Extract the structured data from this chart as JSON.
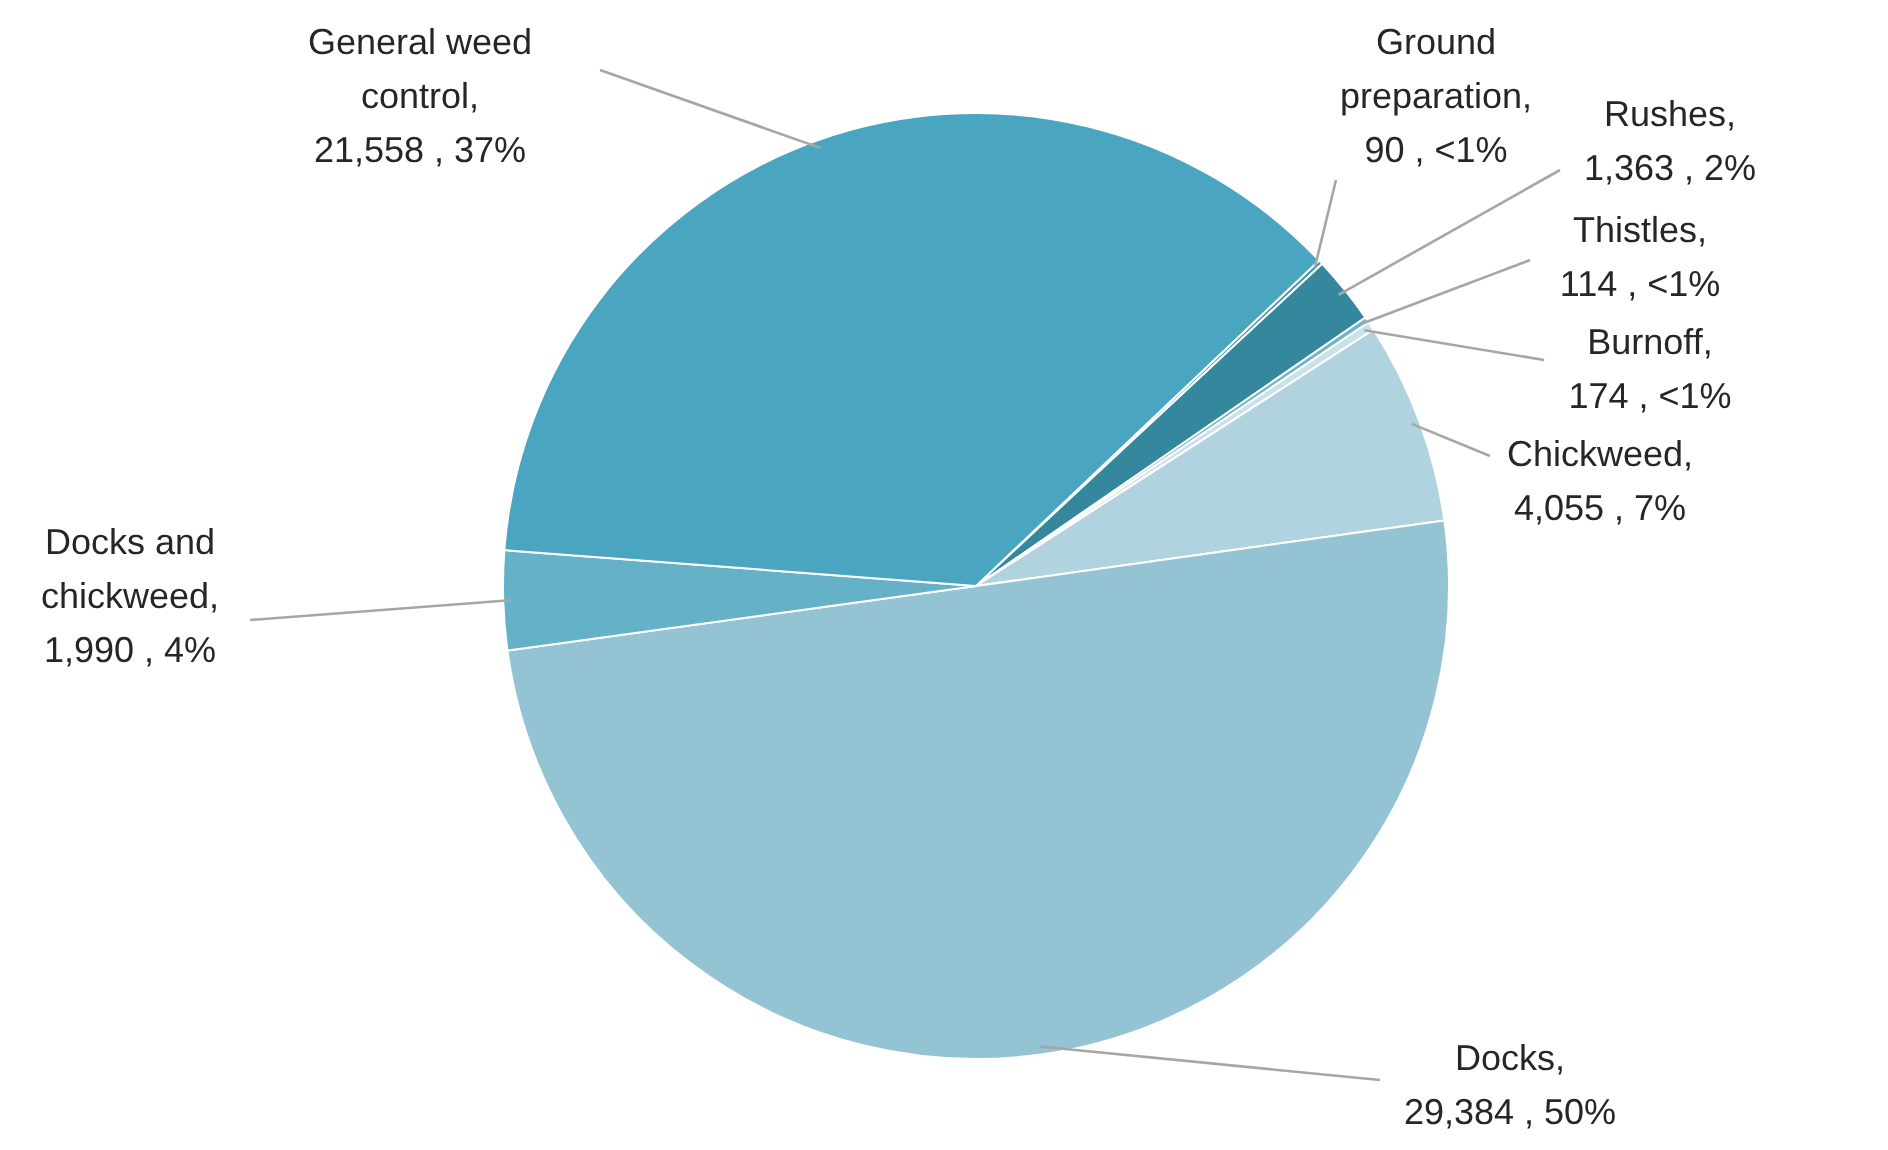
{
  "chart_data": {
    "type": "pie",
    "categories": [
      "Ground preparation",
      "Rushes",
      "Thistles",
      "Burnoff",
      "Chickweed",
      "Docks",
      "Docks and chickweed",
      "General weed control"
    ],
    "values": [
      90,
      1363,
      114,
      174,
      4055,
      29384,
      1990,
      21558
    ],
    "value_labels": [
      ", 90 , <1%",
      ", 1,363 , 2%",
      ", 114 , <1%",
      ", 174 , <1%",
      ", 4,055 , 7%",
      ", 29,384 , 50%",
      ", 1,990 , 4%",
      ", 21,558 , 37%"
    ],
    "colors": [
      "#3f93a8",
      "#34879c",
      "#6fb3c6",
      "#c9e2ea",
      "#b0d3df",
      "#94c3d4",
      "#65b2c8",
      "#4aa6c0"
    ],
    "legend": false
  }
}
